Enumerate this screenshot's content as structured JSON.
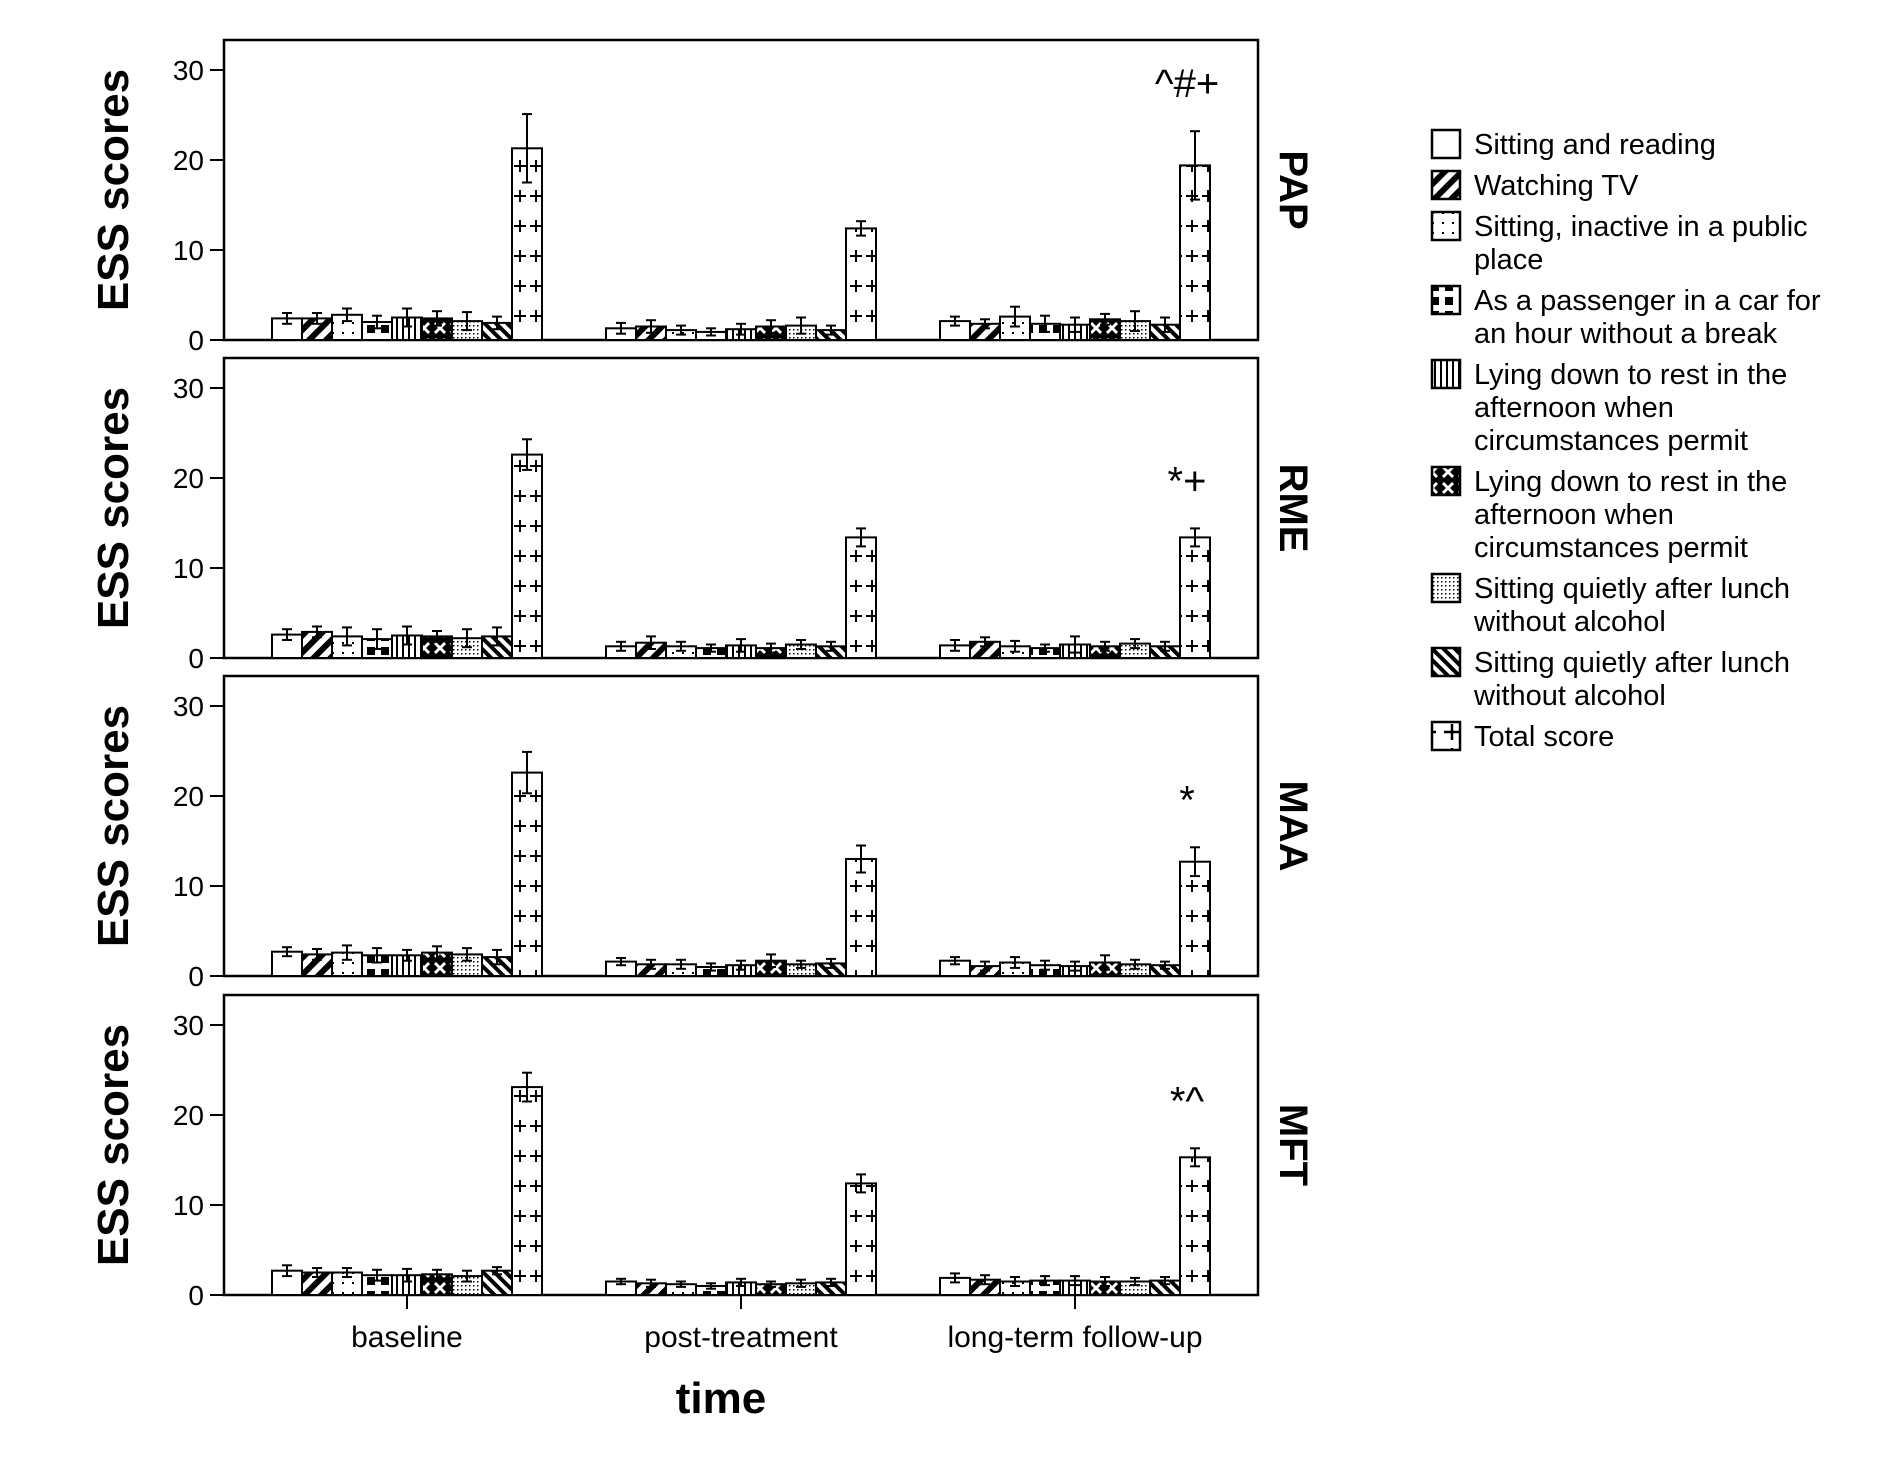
{
  "chart_data": [
    {
      "panel": "PAP",
      "type": "bar",
      "ylabel": "ESS scores",
      "xlabel": "time",
      "ylim": [
        0,
        30
      ],
      "yticks": [
        0,
        10,
        20,
        30
      ],
      "categories": [
        "baseline",
        "post-treatment",
        "long-term follow-up"
      ],
      "annotation": "^#+",
      "series": [
        {
          "name": "Sitting and reading",
          "values": [
            2.4,
            1.3,
            2.1
          ],
          "errors": [
            0.6,
            0.6,
            0.5
          ]
        },
        {
          "name": "Watching TV",
          "values": [
            2.4,
            1.5,
            1.8
          ],
          "errors": [
            0.6,
            0.7,
            0.5
          ]
        },
        {
          "name": "Sitting, inactive in a public place",
          "values": [
            2.8,
            1.1,
            2.6
          ],
          "errors": [
            0.7,
            0.5,
            1.1
          ]
        },
        {
          "name": "As a passenger in a car for an hour without a break",
          "values": [
            2.0,
            0.9,
            1.8
          ],
          "errors": [
            0.7,
            0.4,
            0.9
          ]
        },
        {
          "name": "Lying down to rest in the afternoon when circumstances permit",
          "values": [
            2.5,
            1.2,
            1.7
          ],
          "errors": [
            1.0,
            0.6,
            0.8
          ]
        },
        {
          "name": "Lying down to rest in the afternoon when circumstances permit",
          "values": [
            2.4,
            1.5,
            2.3
          ],
          "errors": [
            0.8,
            0.7,
            0.6
          ]
        },
        {
          "name": "Sitting quietly after lunch without alcohol",
          "values": [
            2.1,
            1.6,
            2.1
          ],
          "errors": [
            1.0,
            0.9,
            1.1
          ]
        },
        {
          "name": "Sitting quietly after lunch without alcohol",
          "values": [
            1.9,
            1.1,
            1.7
          ],
          "errors": [
            0.7,
            0.5,
            0.8
          ]
        },
        {
          "name": "Total score",
          "values": [
            21.3,
            12.4,
            19.4
          ],
          "errors": [
            3.8,
            0.8,
            3.8
          ]
        }
      ]
    },
    {
      "panel": "RME",
      "type": "bar",
      "ylabel": "ESS scores",
      "xlabel": "time",
      "ylim": [
        0,
        30
      ],
      "yticks": [
        0,
        10,
        20,
        30
      ],
      "categories": [
        "baseline",
        "post-treatment",
        "long-term follow-up"
      ],
      "annotation": "*+",
      "series": [
        {
          "name": "Sitting and reading",
          "values": [
            2.6,
            1.3,
            1.4
          ],
          "errors": [
            0.6,
            0.5,
            0.6
          ]
        },
        {
          "name": "Watching TV",
          "values": [
            2.9,
            1.7,
            1.8
          ],
          "errors": [
            0.6,
            0.7,
            0.5
          ]
        },
        {
          "name": "Sitting, inactive in a public place",
          "values": [
            2.4,
            1.3,
            1.3
          ],
          "errors": [
            1.0,
            0.5,
            0.6
          ]
        },
        {
          "name": "As a passenger in a car for an hour without a break",
          "values": [
            2.1,
            1.1,
            1.1
          ],
          "errors": [
            1.1,
            0.4,
            0.4
          ]
        },
        {
          "name": "Lying down to rest in the afternoon when circumstances permit",
          "values": [
            2.5,
            1.4,
            1.5
          ],
          "errors": [
            1.0,
            0.7,
            0.9
          ]
        },
        {
          "name": "Lying down to rest in the afternoon when circumstances permit",
          "values": [
            2.4,
            1.1,
            1.3
          ],
          "errors": [
            0.6,
            0.5,
            0.5
          ]
        },
        {
          "name": "Sitting quietly after lunch without alcohol",
          "values": [
            2.2,
            1.5,
            1.6
          ],
          "errors": [
            1.0,
            0.5,
            0.5
          ]
        },
        {
          "name": "Sitting quietly after lunch without alcohol",
          "values": [
            2.4,
            1.3,
            1.3
          ],
          "errors": [
            1.0,
            0.5,
            0.5
          ]
        },
        {
          "name": "Total score",
          "values": [
            22.6,
            13.4,
            13.4
          ],
          "errors": [
            1.7,
            1.0,
            1.0
          ]
        }
      ]
    },
    {
      "panel": "MAA",
      "type": "bar",
      "ylabel": "ESS scores",
      "xlabel": "time",
      "ylim": [
        0,
        30
      ],
      "yticks": [
        0,
        10,
        20,
        30
      ],
      "categories": [
        "baseline",
        "post-treatment",
        "long-term follow-up"
      ],
      "annotation": "*",
      "series": [
        {
          "name": "Sitting and reading",
          "values": [
            2.7,
            1.6,
            1.7
          ],
          "errors": [
            0.5,
            0.4,
            0.4
          ]
        },
        {
          "name": "Watching TV",
          "values": [
            2.4,
            1.3,
            1.1
          ],
          "errors": [
            0.6,
            0.5,
            0.5
          ]
        },
        {
          "name": "Sitting, inactive in a public place",
          "values": [
            2.6,
            1.3,
            1.5
          ],
          "errors": [
            0.8,
            0.5,
            0.6
          ]
        },
        {
          "name": "As a passenger in a car for an hour without a break",
          "values": [
            2.3,
            1.0,
            1.2
          ],
          "errors": [
            0.8,
            0.4,
            0.5
          ]
        },
        {
          "name": "Lying down to rest in the afternoon when circumstances permit",
          "values": [
            2.3,
            1.2,
            1.1
          ],
          "errors": [
            0.6,
            0.5,
            0.5
          ]
        },
        {
          "name": "Lying down to rest in the afternoon when circumstances permit",
          "values": [
            2.6,
            1.7,
            1.5
          ],
          "errors": [
            0.7,
            0.7,
            0.8
          ]
        },
        {
          "name": "Sitting quietly after lunch without alcohol",
          "values": [
            2.4,
            1.3,
            1.3
          ],
          "errors": [
            0.7,
            0.4,
            0.5
          ]
        },
        {
          "name": "Sitting quietly after lunch without alcohol",
          "values": [
            2.1,
            1.4,
            1.2
          ],
          "errors": [
            0.8,
            0.5,
            0.4
          ]
        },
        {
          "name": "Total score",
          "values": [
            22.6,
            13.0,
            12.7
          ],
          "errors": [
            2.3,
            1.5,
            1.6
          ]
        }
      ]
    },
    {
      "panel": "MFT",
      "type": "bar",
      "ylabel": "ESS scores",
      "xlabel": "time",
      "ylim": [
        0,
        30
      ],
      "yticks": [
        0,
        10,
        20,
        30
      ],
      "categories": [
        "baseline",
        "post-treatment",
        "long-term follow-up"
      ],
      "annotation": "*^",
      "series": [
        {
          "name": "Sitting and reading",
          "values": [
            2.7,
            1.5,
            1.9
          ],
          "errors": [
            0.6,
            0.3,
            0.5
          ]
        },
        {
          "name": "Watching TV",
          "values": [
            2.5,
            1.3,
            1.7
          ],
          "errors": [
            0.5,
            0.4,
            0.5
          ]
        },
        {
          "name": "Sitting, inactive in a public place",
          "values": [
            2.5,
            1.2,
            1.5
          ],
          "errors": [
            0.5,
            0.3,
            0.5
          ]
        },
        {
          "name": "As a passenger in a car for an hour without a break",
          "values": [
            2.2,
            1.0,
            1.6
          ],
          "errors": [
            0.6,
            0.3,
            0.5
          ]
        },
        {
          "name": "Lying down to rest in the afternoon when circumstances permit",
          "values": [
            2.2,
            1.4,
            1.6
          ],
          "errors": [
            0.7,
            0.4,
            0.5
          ]
        },
        {
          "name": "Lying down to rest in the afternoon when circumstances permit",
          "values": [
            2.3,
            1.2,
            1.5
          ],
          "errors": [
            0.5,
            0.3,
            0.5
          ]
        },
        {
          "name": "Sitting quietly after lunch without alcohol",
          "values": [
            2.1,
            1.3,
            1.5
          ],
          "errors": [
            0.6,
            0.4,
            0.4
          ]
        },
        {
          "name": "Sitting quietly after lunch without alcohol",
          "values": [
            2.7,
            1.4,
            1.6
          ],
          "errors": [
            0.4,
            0.4,
            0.4
          ]
        },
        {
          "name": "Total score",
          "values": [
            23.1,
            12.4,
            15.3
          ],
          "errors": [
            1.6,
            1.0,
            1.0
          ]
        }
      ]
    }
  ],
  "legend": {
    "placement": "right",
    "items": [
      {
        "pattern": "empty",
        "lines": [
          "Sitting and reading"
        ]
      },
      {
        "pattern": "diag-thick",
        "lines": [
          "Watching TV"
        ]
      },
      {
        "pattern": "sparse-dots",
        "lines": [
          "Sitting, inactive in a public",
          "place"
        ]
      },
      {
        "pattern": "blocks",
        "lines": [
          "As a passenger in a car for",
          "an hour without a break"
        ]
      },
      {
        "pattern": "vertical",
        "lines": [
          "Lying down to rest in the",
          "afternoon when",
          "circumstances permit"
        ]
      },
      {
        "pattern": "xmark",
        "lines": [
          "Lying down to rest in the",
          "afternoon when",
          "circumstances permit"
        ]
      },
      {
        "pattern": "dense-dots",
        "lines": [
          "Sitting quietly after lunch",
          "without alcohol"
        ]
      },
      {
        "pattern": "diag-thin",
        "lines": [
          "Sitting quietly after lunch",
          "without alcohol"
        ]
      },
      {
        "pattern": "plus",
        "lines": [
          "Total score"
        ]
      }
    ]
  }
}
